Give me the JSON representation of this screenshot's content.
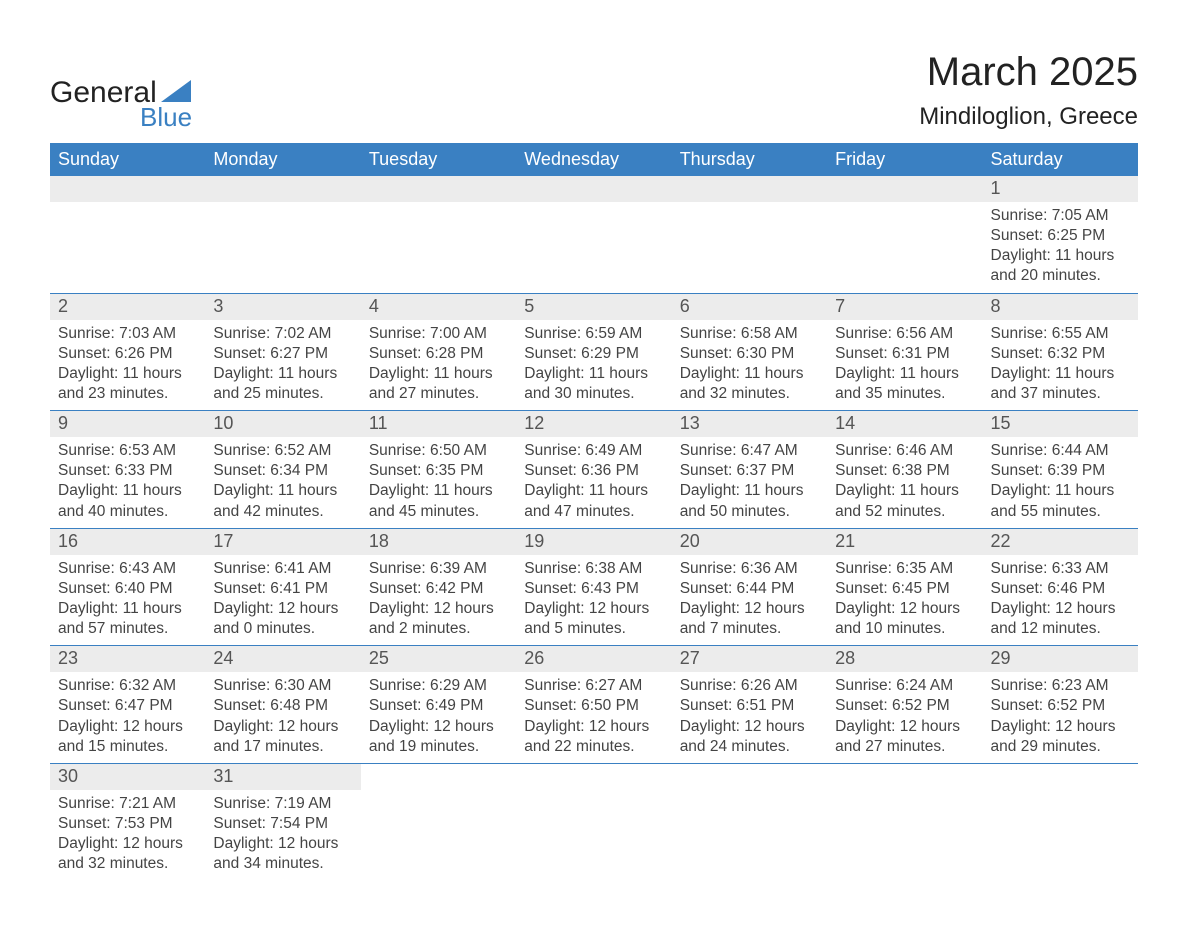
{
  "logo": {
    "text1": "General",
    "text2": "Blue"
  },
  "title": "March 2025",
  "location": "Mindiloglion, Greece",
  "columns": [
    "Sunday",
    "Monday",
    "Tuesday",
    "Wednesday",
    "Thursday",
    "Friday",
    "Saturday"
  ],
  "colors": {
    "header_bg": "#3a80c2",
    "header_text": "#ffffff",
    "daynum_bg": "#ececec",
    "border": "#3a80c2",
    "text": "#444444",
    "logo_blue": "#3a80c2"
  },
  "weeks": [
    [
      null,
      null,
      null,
      null,
      null,
      null,
      {
        "n": "1",
        "sr": "Sunrise: 7:05 AM",
        "ss": "Sunset: 6:25 PM",
        "d1": "Daylight: 11 hours",
        "d2": "and 20 minutes."
      }
    ],
    [
      {
        "n": "2",
        "sr": "Sunrise: 7:03 AM",
        "ss": "Sunset: 6:26 PM",
        "d1": "Daylight: 11 hours",
        "d2": "and 23 minutes."
      },
      {
        "n": "3",
        "sr": "Sunrise: 7:02 AM",
        "ss": "Sunset: 6:27 PM",
        "d1": "Daylight: 11 hours",
        "d2": "and 25 minutes."
      },
      {
        "n": "4",
        "sr": "Sunrise: 7:00 AM",
        "ss": "Sunset: 6:28 PM",
        "d1": "Daylight: 11 hours",
        "d2": "and 27 minutes."
      },
      {
        "n": "5",
        "sr": "Sunrise: 6:59 AM",
        "ss": "Sunset: 6:29 PM",
        "d1": "Daylight: 11 hours",
        "d2": "and 30 minutes."
      },
      {
        "n": "6",
        "sr": "Sunrise: 6:58 AM",
        "ss": "Sunset: 6:30 PM",
        "d1": "Daylight: 11 hours",
        "d2": "and 32 minutes."
      },
      {
        "n": "7",
        "sr": "Sunrise: 6:56 AM",
        "ss": "Sunset: 6:31 PM",
        "d1": "Daylight: 11 hours",
        "d2": "and 35 minutes."
      },
      {
        "n": "8",
        "sr": "Sunrise: 6:55 AM",
        "ss": "Sunset: 6:32 PM",
        "d1": "Daylight: 11 hours",
        "d2": "and 37 minutes."
      }
    ],
    [
      {
        "n": "9",
        "sr": "Sunrise: 6:53 AM",
        "ss": "Sunset: 6:33 PM",
        "d1": "Daylight: 11 hours",
        "d2": "and 40 minutes."
      },
      {
        "n": "10",
        "sr": "Sunrise: 6:52 AM",
        "ss": "Sunset: 6:34 PM",
        "d1": "Daylight: 11 hours",
        "d2": "and 42 minutes."
      },
      {
        "n": "11",
        "sr": "Sunrise: 6:50 AM",
        "ss": "Sunset: 6:35 PM",
        "d1": "Daylight: 11 hours",
        "d2": "and 45 minutes."
      },
      {
        "n": "12",
        "sr": "Sunrise: 6:49 AM",
        "ss": "Sunset: 6:36 PM",
        "d1": "Daylight: 11 hours",
        "d2": "and 47 minutes."
      },
      {
        "n": "13",
        "sr": "Sunrise: 6:47 AM",
        "ss": "Sunset: 6:37 PM",
        "d1": "Daylight: 11 hours",
        "d2": "and 50 minutes."
      },
      {
        "n": "14",
        "sr": "Sunrise: 6:46 AM",
        "ss": "Sunset: 6:38 PM",
        "d1": "Daylight: 11 hours",
        "d2": "and 52 minutes."
      },
      {
        "n": "15",
        "sr": "Sunrise: 6:44 AM",
        "ss": "Sunset: 6:39 PM",
        "d1": "Daylight: 11 hours",
        "d2": "and 55 minutes."
      }
    ],
    [
      {
        "n": "16",
        "sr": "Sunrise: 6:43 AM",
        "ss": "Sunset: 6:40 PM",
        "d1": "Daylight: 11 hours",
        "d2": "and 57 minutes."
      },
      {
        "n": "17",
        "sr": "Sunrise: 6:41 AM",
        "ss": "Sunset: 6:41 PM",
        "d1": "Daylight: 12 hours",
        "d2": "and 0 minutes."
      },
      {
        "n": "18",
        "sr": "Sunrise: 6:39 AM",
        "ss": "Sunset: 6:42 PM",
        "d1": "Daylight: 12 hours",
        "d2": "and 2 minutes."
      },
      {
        "n": "19",
        "sr": "Sunrise: 6:38 AM",
        "ss": "Sunset: 6:43 PM",
        "d1": "Daylight: 12 hours",
        "d2": "and 5 minutes."
      },
      {
        "n": "20",
        "sr": "Sunrise: 6:36 AM",
        "ss": "Sunset: 6:44 PM",
        "d1": "Daylight: 12 hours",
        "d2": "and 7 minutes."
      },
      {
        "n": "21",
        "sr": "Sunrise: 6:35 AM",
        "ss": "Sunset: 6:45 PM",
        "d1": "Daylight: 12 hours",
        "d2": "and 10 minutes."
      },
      {
        "n": "22",
        "sr": "Sunrise: 6:33 AM",
        "ss": "Sunset: 6:46 PM",
        "d1": "Daylight: 12 hours",
        "d2": "and 12 minutes."
      }
    ],
    [
      {
        "n": "23",
        "sr": "Sunrise: 6:32 AM",
        "ss": "Sunset: 6:47 PM",
        "d1": "Daylight: 12 hours",
        "d2": "and 15 minutes."
      },
      {
        "n": "24",
        "sr": "Sunrise: 6:30 AM",
        "ss": "Sunset: 6:48 PM",
        "d1": "Daylight: 12 hours",
        "d2": "and 17 minutes."
      },
      {
        "n": "25",
        "sr": "Sunrise: 6:29 AM",
        "ss": "Sunset: 6:49 PM",
        "d1": "Daylight: 12 hours",
        "d2": "and 19 minutes."
      },
      {
        "n": "26",
        "sr": "Sunrise: 6:27 AM",
        "ss": "Sunset: 6:50 PM",
        "d1": "Daylight: 12 hours",
        "d2": "and 22 minutes."
      },
      {
        "n": "27",
        "sr": "Sunrise: 6:26 AM",
        "ss": "Sunset: 6:51 PM",
        "d1": "Daylight: 12 hours",
        "d2": "and 24 minutes."
      },
      {
        "n": "28",
        "sr": "Sunrise: 6:24 AM",
        "ss": "Sunset: 6:52 PM",
        "d1": "Daylight: 12 hours",
        "d2": "and 27 minutes."
      },
      {
        "n": "29",
        "sr": "Sunrise: 6:23 AM",
        "ss": "Sunset: 6:52 PM",
        "d1": "Daylight: 12 hours",
        "d2": "and 29 minutes."
      }
    ],
    [
      {
        "n": "30",
        "sr": "Sunrise: 7:21 AM",
        "ss": "Sunset: 7:53 PM",
        "d1": "Daylight: 12 hours",
        "d2": "and 32 minutes."
      },
      {
        "n": "31",
        "sr": "Sunrise: 7:19 AM",
        "ss": "Sunset: 7:54 PM",
        "d1": "Daylight: 12 hours",
        "d2": "and 34 minutes."
      },
      null,
      null,
      null,
      null,
      null
    ]
  ]
}
